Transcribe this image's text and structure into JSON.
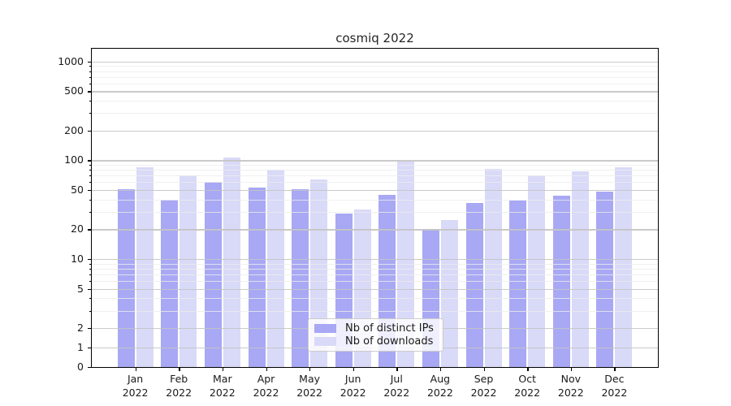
{
  "title": "cosmiq 2022",
  "chart_data": {
    "type": "bar",
    "title": "cosmiq 2022",
    "categories": [
      "Jan 2022",
      "Feb 2022",
      "Mar 2022",
      "Apr 2022",
      "May 2022",
      "Jun 2022",
      "Jul 2022",
      "Aug 2022",
      "Sep 2022",
      "Oct 2022",
      "Nov 2022",
      "Dec 2022"
    ],
    "series": [
      {
        "name": "Nb of distinct IPs",
        "color": "#a8a8f4",
        "values": [
          51,
          40,
          60,
          53,
          51,
          29,
          45,
          20,
          37,
          39,
          44,
          48
        ]
      },
      {
        "name": "Nb of downloads",
        "color": "#d9d9f8",
        "values": [
          85,
          70,
          106,
          81,
          64,
          32,
          98,
          25,
          82,
          71,
          77,
          85
        ]
      }
    ],
    "xlabel": "",
    "ylabel": "",
    "yscale": "symlog",
    "yticks": [
      0,
      1,
      2,
      5,
      10,
      20,
      50,
      100,
      200,
      500,
      1000
    ],
    "ylim": [
      0,
      1350
    ],
    "grid": "both",
    "legend_position": "lower center"
  },
  "colors": {
    "bar_distinct_ips": "#a8a8f4",
    "bar_downloads": "#d9d9f8",
    "grid_major": "#c4c4c4",
    "grid_minor": "#ececec",
    "axis": "#000000",
    "legend_border": "#cccccc",
    "background": "#ffffff"
  }
}
